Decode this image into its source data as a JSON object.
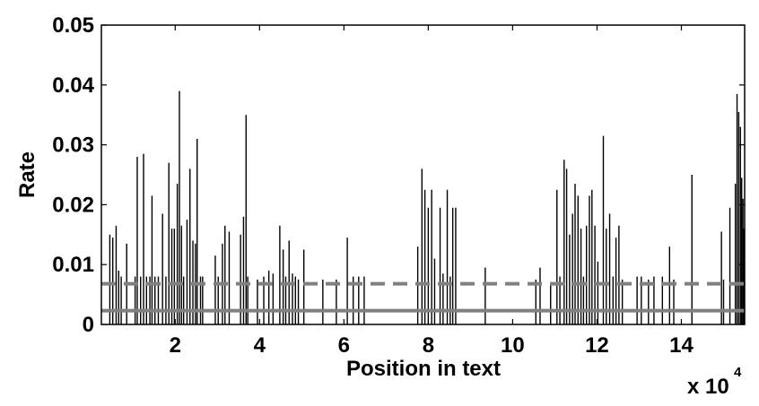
{
  "chart_data": {
    "type": "bar",
    "xlabel": "Position in text",
    "ylabel": "Rate",
    "x_multiplier": "x 10",
    "x_multiplier_exponent": "4",
    "xlim": [
      0.25,
      15.5
    ],
    "ylim": [
      0,
      0.05
    ],
    "x_ticks": [
      2,
      4,
      6,
      8,
      10,
      12,
      14
    ],
    "x_tick_labels": [
      "2",
      "4",
      "6",
      "8",
      "10",
      "12",
      "14"
    ],
    "y_ticks": [
      0,
      0.01,
      0.02,
      0.03,
      0.04,
      0.05
    ],
    "y_tick_labels": [
      "0",
      "0.01",
      "0.02",
      "0.03",
      "0.04",
      "0.05"
    ],
    "bar_color": "#000000",
    "reference_lines": [
      {
        "style": "dashed",
        "color": "#808080",
        "y": 0.0068
      },
      {
        "style": "solid",
        "color": "#808080",
        "y": 0.0023
      }
    ],
    "spikes": [
      [
        0.45,
        0.015
      ],
      [
        0.52,
        0.0145
      ],
      [
        0.6,
        0.0165
      ],
      [
        0.66,
        0.009
      ],
      [
        0.72,
        0.008
      ],
      [
        0.85,
        0.0135
      ],
      [
        1.05,
        0.008
      ],
      [
        1.1,
        0.028
      ],
      [
        1.18,
        0.008
      ],
      [
        1.25,
        0.0285
      ],
      [
        1.32,
        0.008
      ],
      [
        1.4,
        0.008
      ],
      [
        1.45,
        0.0215
      ],
      [
        1.52,
        0.008
      ],
      [
        1.6,
        0.008
      ],
      [
        1.7,
        0.0185
      ],
      [
        1.78,
        0.008
      ],
      [
        1.85,
        0.027
      ],
      [
        1.92,
        0.016
      ],
      [
        1.98,
        0.016
      ],
      [
        2.05,
        0.0235
      ],
      [
        2.1,
        0.039
      ],
      [
        2.15,
        0.0165
      ],
      [
        2.2,
        0.008
      ],
      [
        2.28,
        0.0175
      ],
      [
        2.35,
        0.026
      ],
      [
        2.42,
        0.014
      ],
      [
        2.48,
        0.0135
      ],
      [
        2.52,
        0.031
      ],
      [
        2.6,
        0.008
      ],
      [
        2.65,
        0.008
      ],
      [
        2.95,
        0.0115
      ],
      [
        3.02,
        0.008
      ],
      [
        3.12,
        0.0135
      ],
      [
        3.18,
        0.0165
      ],
      [
        3.28,
        0.0155
      ],
      [
        3.55,
        0.015
      ],
      [
        3.62,
        0.018
      ],
      [
        3.68,
        0.035
      ],
      [
        3.72,
        0.008
      ],
      [
        3.95,
        0.0075
      ],
      [
        4.1,
        0.008
      ],
      [
        4.22,
        0.009
      ],
      [
        4.32,
        0.0085
      ],
      [
        4.48,
        0.0165
      ],
      [
        4.56,
        0.0125
      ],
      [
        4.62,
        0.008
      ],
      [
        4.7,
        0.014
      ],
      [
        4.78,
        0.0085
      ],
      [
        4.85,
        0.008
      ],
      [
        4.92,
        0.0075
      ],
      [
        5.05,
        0.0125
      ],
      [
        5.5,
        0.0075
      ],
      [
        5.82,
        0.0075
      ],
      [
        6.08,
        0.0145
      ],
      [
        6.22,
        0.008
      ],
      [
        6.35,
        0.008
      ],
      [
        6.48,
        0.008
      ],
      [
        7.75,
        0.013
      ],
      [
        7.85,
        0.026
      ],
      [
        7.92,
        0.0225
      ],
      [
        8.0,
        0.0195
      ],
      [
        8.08,
        0.0225
      ],
      [
        8.15,
        0.011
      ],
      [
        8.28,
        0.0195
      ],
      [
        8.35,
        0.0085
      ],
      [
        8.45,
        0.0225
      ],
      [
        8.52,
        0.008
      ],
      [
        8.58,
        0.0195
      ],
      [
        8.65,
        0.0195
      ],
      [
        9.35,
        0.0095
      ],
      [
        10.55,
        0.0075
      ],
      [
        10.65,
        0.0095
      ],
      [
        10.9,
        0.007
      ],
      [
        11.05,
        0.0225
      ],
      [
        11.12,
        0.008
      ],
      [
        11.22,
        0.0275
      ],
      [
        11.28,
        0.026
      ],
      [
        11.35,
        0.015
      ],
      [
        11.42,
        0.0185
      ],
      [
        11.48,
        0.0235
      ],
      [
        11.55,
        0.0215
      ],
      [
        11.62,
        0.016
      ],
      [
        11.68,
        0.008
      ],
      [
        11.75,
        0.0165
      ],
      [
        11.82,
        0.0215
      ],
      [
        11.88,
        0.0225
      ],
      [
        11.95,
        0.0165
      ],
      [
        12.02,
        0.0105
      ],
      [
        12.15,
        0.0315
      ],
      [
        12.22,
        0.016
      ],
      [
        12.3,
        0.0185
      ],
      [
        12.38,
        0.008
      ],
      [
        12.45,
        0.0145
      ],
      [
        12.52,
        0.0165
      ],
      [
        12.6,
        0.0075
      ],
      [
        12.95,
        0.008
      ],
      [
        13.05,
        0.008
      ],
      [
        13.22,
        0.0075
      ],
      [
        13.35,
        0.008
      ],
      [
        13.55,
        0.008
      ],
      [
        13.72,
        0.013
      ],
      [
        13.82,
        0.0075
      ],
      [
        14.25,
        0.025
      ],
      [
        14.95,
        0.0155
      ],
      [
        15.0,
        0.0075
      ],
      [
        15.15,
        0.0195
      ],
      [
        15.28,
        0.0235
      ],
      [
        15.32,
        0.0385
      ],
      [
        15.36,
        0.0355
      ],
      [
        15.4,
        0.033
      ],
      [
        15.43,
        0.0245
      ],
      [
        15.46,
        0.021
      ],
      [
        15.48,
        0.016
      ]
    ],
    "grid": false
  }
}
